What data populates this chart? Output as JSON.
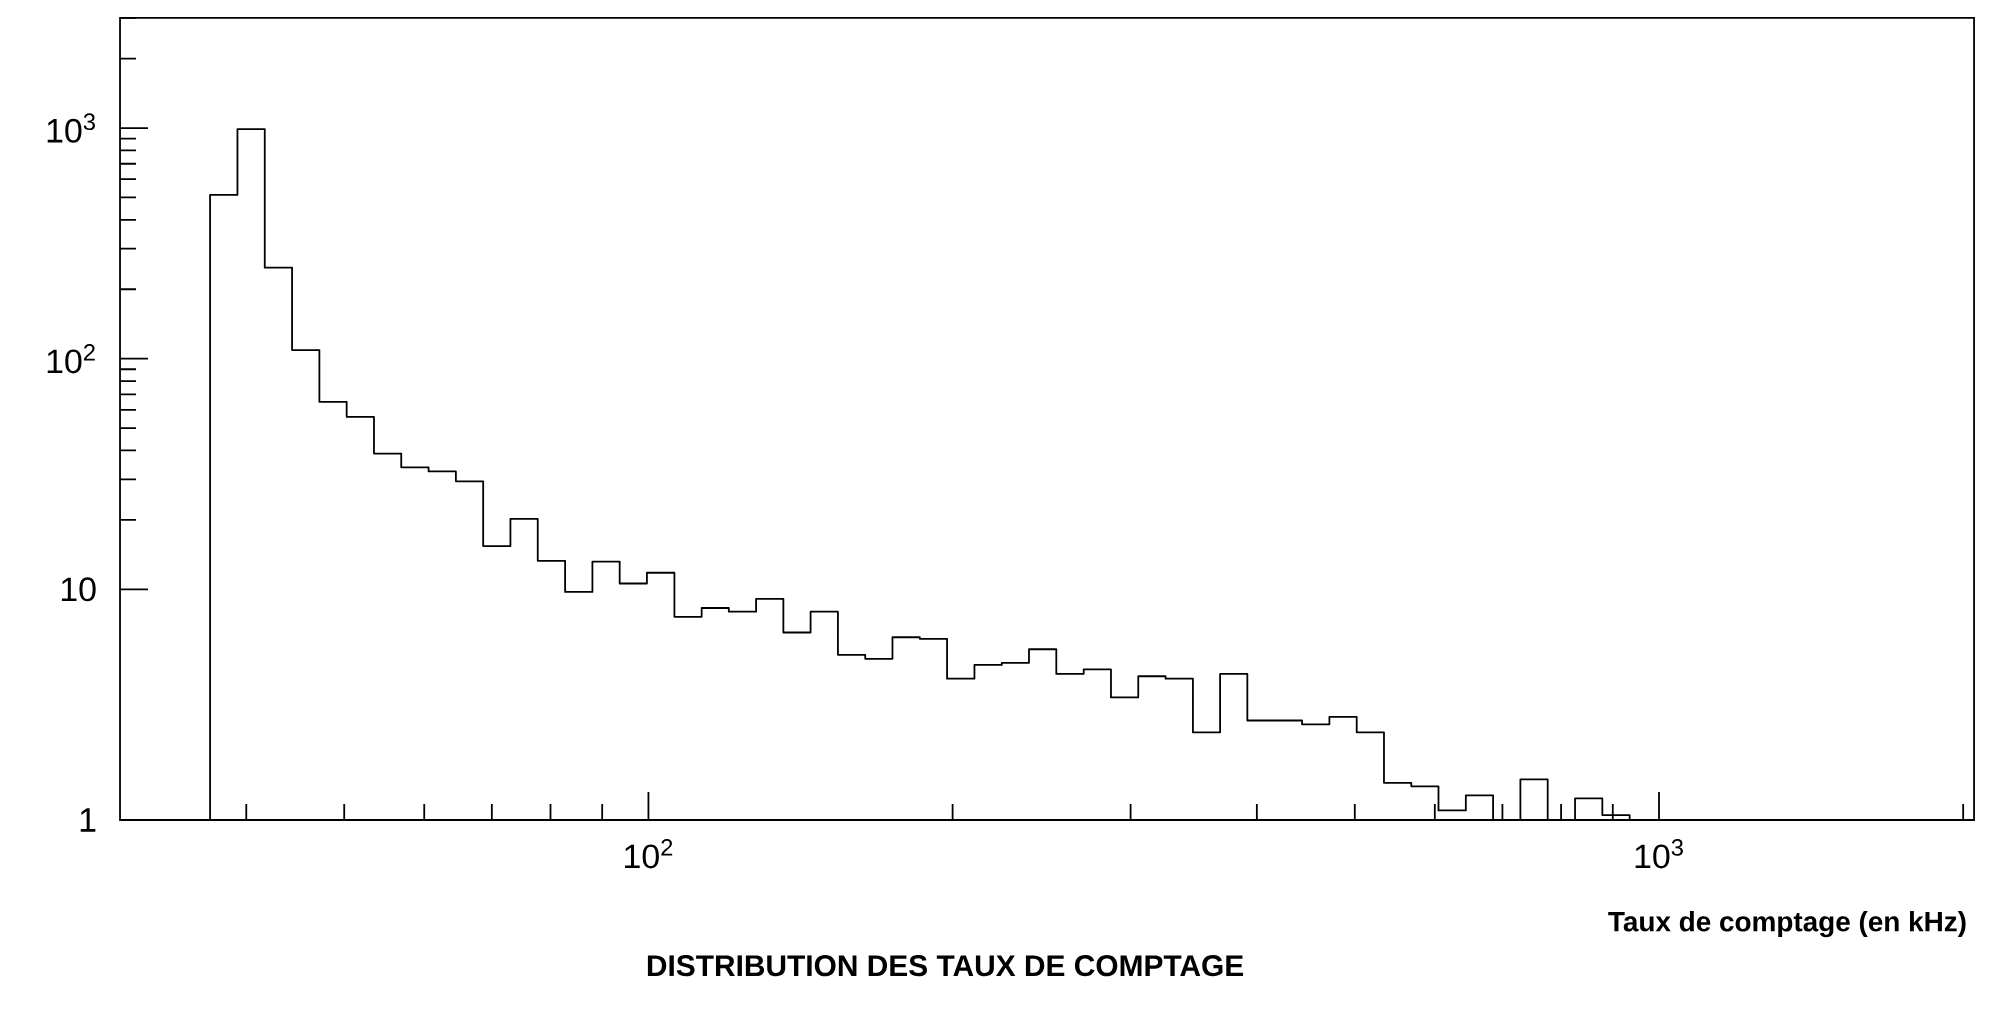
{
  "chart_data": {
    "type": "histogram",
    "title": "DISTRIBUTION DES TAUX DE COMPTAGE",
    "xlabel": "Taux de comptage (en kHz)",
    "bins": [
      36.84,
      39.21,
      41.72,
      44.4,
      47.25,
      50.28,
      53.51,
      56.94,
      60.6,
      64.49,
      68.63,
      73.03,
      77.72,
      82.71,
      88.02,
      93.66,
      99.66,
      106.1,
      112.9,
      120.1,
      127.8,
      136.0,
      144.7,
      154.0,
      163.9,
      174.4,
      185.6,
      197.5,
      210.2,
      223.7,
      238.0,
      253.3,
      269.6,
      286.9,
      305.3,
      324.9,
      345.8,
      367.9,
      391.5,
      416.7,
      443.4,
      471.9,
      502.2,
      534.4,
      568.7,
      605.1,
      644.0,
      685.3,
      729.3,
      776.1,
      825.9,
      878.9,
      935.3
    ],
    "values": [
      513,
      990,
      248,
      109,
      65,
      56,
      38.8,
      33.8,
      32.5,
      29.4,
      15.4,
      20.2,
      13.3,
      9.75,
      13.2,
      10.6,
      11.8,
      7.6,
      8.3,
      8.0,
      9.1,
      6.5,
      8.0,
      5.2,
      5.0,
      6.2,
      6.1,
      4.1,
      4.7,
      4.8,
      5.5,
      4.3,
      4.5,
      3.4,
      4.2,
      4.1,
      2.4,
      4.3,
      2.7,
      2.7,
      2.6,
      2.8,
      2.4,
      1.45,
      1.4,
      1.1,
      1.28,
      null,
      1.5,
      null,
      1.24,
      1.05
    ],
    "color": "#000000",
    "log": "xy",
    "xlim": [
      30,
      2050
    ],
    "ylim": [
      1,
      3000
    ],
    "xticks": [
      {
        "value": 40,
        "label": null
      },
      {
        "value": 50,
        "label": null
      },
      {
        "value": 60,
        "label": null
      },
      {
        "value": 70,
        "label": null
      },
      {
        "value": 80,
        "label": null
      },
      {
        "value": 90,
        "label": null
      },
      {
        "value": 100,
        "label": "10$^{2}$"
      },
      {
        "value": 200,
        "label": null
      },
      {
        "value": 300,
        "label": null
      },
      {
        "value": 400,
        "label": null
      },
      {
        "value": 500,
        "label": null
      },
      {
        "value": 600,
        "label": null
      },
      {
        "value": 700,
        "label": null
      },
      {
        "value": 800,
        "label": null
      },
      {
        "value": 900,
        "label": null
      },
      {
        "value": 1000,
        "label": "10$^{3}$"
      },
      {
        "value": 2000,
        "label": null
      }
    ],
    "yticks": [
      1,
      10,
      {
        "value": 20,
        "label": null
      },
      {
        "value": 30,
        "label": null
      },
      {
        "value": 40,
        "label": null
      },
      {
        "value": 50,
        "label": null
      },
      {
        "value": 60,
        "label": null
      },
      {
        "value": 70,
        "label": null
      },
      {
        "value": 80,
        "label": null
      },
      {
        "value": 90,
        "label": null
      },
      {
        "value": 100,
        "label": "10$^{2}$"
      },
      {
        "value": 200,
        "label": null
      },
      {
        "value": 300,
        "label": null
      },
      {
        "value": 400,
        "label": null
      },
      {
        "value": 500,
        "label": null
      },
      {
        "value": 600,
        "label": null
      },
      {
        "value": 700,
        "label": null
      },
      {
        "value": 800,
        "label": null
      },
      {
        "value": 900,
        "label": null
      },
      {
        "value": 1000,
        "label": "10$^{3}$"
      },
      {
        "value": 2000,
        "label": null
      },
      {
        "value": 3000,
        "label": null
      }
    ]
  }
}
